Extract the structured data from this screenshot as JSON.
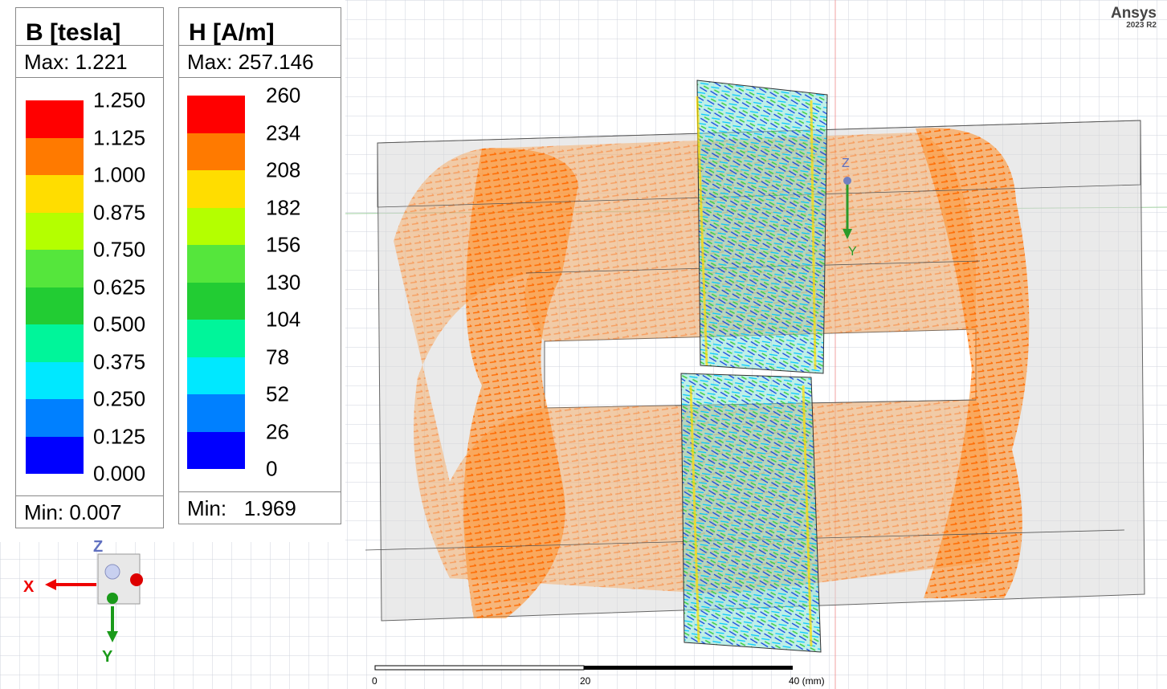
{
  "logo": {
    "name": "Ansys",
    "version": "2023 R2"
  },
  "colormap": [
    "#ff0000",
    "#ff7a00",
    "#ffdd00",
    "#b4ff00",
    "#55e63c",
    "#22cc33",
    "#00f59a",
    "#00e8ff",
    "#0080ff",
    "#0000ff"
  ],
  "legends": [
    {
      "title": "B [tesla]",
      "max": "Max: 1.221",
      "levels": [
        "1.250",
        "1.125",
        "1.000",
        "0.875",
        "0.750",
        "0.625",
        "0.500",
        "0.375",
        "0.250",
        "0.125",
        "0.000"
      ],
      "min": "Min: 0.007"
    },
    {
      "title": "H [A/m]",
      "max": "Max: 257.146",
      "levels": [
        "260",
        "234",
        "208",
        "182",
        "156",
        "130",
        "104",
        "78",
        "52",
        "26",
        "0"
      ],
      "min": "Min:   1.969"
    }
  ],
  "triad": {
    "x": "X",
    "y": "Y",
    "z": "Z"
  },
  "model_triad": {
    "y": "Y",
    "z": "Z"
  },
  "scale_bar": {
    "labels": [
      "0",
      "20",
      "40 (mm)"
    ]
  }
}
